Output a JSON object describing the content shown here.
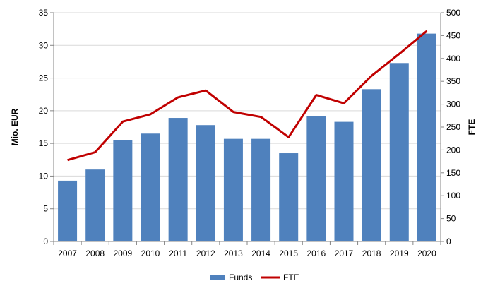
{
  "chart_data": {
    "type": "bar",
    "categories": [
      "2007",
      "2008",
      "2009",
      "2010",
      "2011",
      "2012",
      "2013",
      "2014",
      "2015",
      "2016",
      "2017",
      "2018",
      "2019",
      "2020"
    ],
    "series": [
      {
        "name": "Funds",
        "type": "bar",
        "axis": "left",
        "color": "#4F81BD",
        "values": [
          9.3,
          11.0,
          15.5,
          16.5,
          18.9,
          17.8,
          15.7,
          15.7,
          13.5,
          19.2,
          18.3,
          23.3,
          27.3,
          31.8
        ]
      },
      {
        "name": "FTE",
        "type": "line",
        "axis": "right",
        "color": "#C00000",
        "values": [
          178,
          195,
          262,
          278,
          315,
          330,
          283,
          272,
          228,
          320,
          302,
          362,
          410,
          460
        ]
      }
    ],
    "y_left": {
      "label": "Mio. EUR",
      "range": [
        0,
        35
      ],
      "ticks": [
        "0",
        "5",
        "10",
        "15",
        "20",
        "25",
        "30",
        "35"
      ]
    },
    "y_right": {
      "label": "FTE",
      "range": [
        0,
        500
      ],
      "ticks": [
        "0",
        "50",
        "100",
        "150",
        "200",
        "250",
        "300",
        "350",
        "400",
        "450",
        "500"
      ]
    },
    "grid": true,
    "legend_position": "bottom",
    "colors": {
      "gridline": "#D9D9D9",
      "axis": "#868686"
    }
  }
}
